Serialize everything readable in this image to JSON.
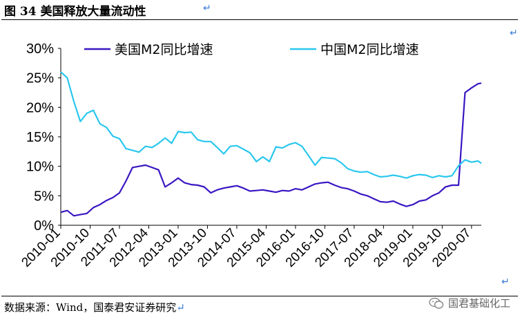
{
  "header": {
    "title": "图 34 美国释放大量流动性",
    "return_mark": "↵"
  },
  "footer": {
    "source": "数据来源：Wind，国泰君安证券研究",
    "watermark": "国君基础化工"
  },
  "colors": {
    "us_series": "#3a16c2",
    "china_series": "#29c7ee",
    "accent_mark": "#3a7bd5"
  },
  "chart_data": {
    "type": "line",
    "y_tick_labels": [
      "0%",
      "5%",
      "10%",
      "15%",
      "20%",
      "25%",
      "30%"
    ],
    "ylim": [
      0,
      30
    ],
    "x_tick_labels": [
      "2010-01",
      "2010-10",
      "2011-07",
      "2012-04",
      "2013-01",
      "2013-10",
      "2014-07",
      "2015-04",
      "2016-01",
      "2016-10",
      "2017-07",
      "2018-04",
      "2019-01",
      "2019-10",
      "2020-07"
    ],
    "legend": "top",
    "grid": false,
    "series": [
      {
        "name": "美国M2同比增速",
        "color": "#3a16c2",
        "points": [
          [
            "2010-01",
            2.2
          ],
          [
            "2010-03",
            2.5
          ],
          [
            "2010-05",
            1.6
          ],
          [
            "2010-07",
            1.8
          ],
          [
            "2010-09",
            2.0
          ],
          [
            "2010-11",
            3.0
          ],
          [
            "2011-01",
            3.5
          ],
          [
            "2011-03",
            4.2
          ],
          [
            "2011-05",
            4.7
          ],
          [
            "2011-07",
            5.5
          ],
          [
            "2011-09",
            7.5
          ],
          [
            "2011-11",
            9.8
          ],
          [
            "2012-01",
            10.0
          ],
          [
            "2012-03",
            10.2
          ],
          [
            "2012-05",
            9.8
          ],
          [
            "2012-07",
            9.4
          ],
          [
            "2012-09",
            6.5
          ],
          [
            "2012-11",
            7.2
          ],
          [
            "2013-01",
            8.0
          ],
          [
            "2013-03",
            7.2
          ],
          [
            "2013-05",
            6.9
          ],
          [
            "2013-07",
            6.8
          ],
          [
            "2013-09",
            6.5
          ],
          [
            "2013-11",
            5.5
          ],
          [
            "2014-01",
            6.0
          ],
          [
            "2014-03",
            6.3
          ],
          [
            "2014-05",
            6.5
          ],
          [
            "2014-07",
            6.7
          ],
          [
            "2014-09",
            6.3
          ],
          [
            "2014-11",
            5.8
          ],
          [
            "2015-01",
            5.9
          ],
          [
            "2015-03",
            6.0
          ],
          [
            "2015-05",
            5.8
          ],
          [
            "2015-07",
            5.6
          ],
          [
            "2015-09",
            5.9
          ],
          [
            "2015-11",
            5.8
          ],
          [
            "2016-01",
            6.2
          ],
          [
            "2016-03",
            6.0
          ],
          [
            "2016-05",
            6.5
          ],
          [
            "2016-07",
            7.0
          ],
          [
            "2016-09",
            7.2
          ],
          [
            "2016-11",
            7.3
          ],
          [
            "2017-01",
            6.8
          ],
          [
            "2017-03",
            6.4
          ],
          [
            "2017-05",
            6.2
          ],
          [
            "2017-07",
            5.8
          ],
          [
            "2017-09",
            5.3
          ],
          [
            "2017-11",
            5.0
          ],
          [
            "2018-01",
            4.5
          ],
          [
            "2018-03",
            4.0
          ],
          [
            "2018-05",
            3.9
          ],
          [
            "2018-07",
            4.1
          ],
          [
            "2018-09",
            3.6
          ],
          [
            "2018-11",
            3.2
          ],
          [
            "2019-01",
            3.5
          ],
          [
            "2019-03",
            4.1
          ],
          [
            "2019-05",
            4.3
          ],
          [
            "2019-07",
            5.0
          ],
          [
            "2019-09",
            5.5
          ],
          [
            "2019-11",
            6.5
          ],
          [
            "2020-01",
            6.8
          ],
          [
            "2020-03",
            6.8
          ],
          [
            "2020-05",
            22.5
          ],
          [
            "2020-07",
            23.3
          ],
          [
            "2020-09",
            24.0
          ],
          [
            "2020-10",
            24.1
          ]
        ]
      },
      {
        "name": "中国M2同比增速",
        "color": "#29c7ee",
        "points": [
          [
            "2010-01",
            26.0
          ],
          [
            "2010-03",
            25.0
          ],
          [
            "2010-05",
            21.0
          ],
          [
            "2010-07",
            17.6
          ],
          [
            "2010-09",
            19.0
          ],
          [
            "2010-11",
            19.5
          ],
          [
            "2011-01",
            17.2
          ],
          [
            "2011-03",
            16.6
          ],
          [
            "2011-05",
            15.1
          ],
          [
            "2011-07",
            14.7
          ],
          [
            "2011-09",
            13.0
          ],
          [
            "2011-11",
            12.7
          ],
          [
            "2012-01",
            12.4
          ],
          [
            "2012-03",
            13.4
          ],
          [
            "2012-05",
            13.2
          ],
          [
            "2012-07",
            13.9
          ],
          [
            "2012-09",
            14.8
          ],
          [
            "2012-11",
            13.9
          ],
          [
            "2013-01",
            15.9
          ],
          [
            "2013-03",
            15.7
          ],
          [
            "2013-05",
            15.8
          ],
          [
            "2013-07",
            14.5
          ],
          [
            "2013-09",
            14.2
          ],
          [
            "2013-11",
            14.2
          ],
          [
            "2014-01",
            13.2
          ],
          [
            "2014-03",
            12.1
          ],
          [
            "2014-05",
            13.4
          ],
          [
            "2014-07",
            13.5
          ],
          [
            "2014-09",
            12.9
          ],
          [
            "2014-11",
            12.3
          ],
          [
            "2015-01",
            10.8
          ],
          [
            "2015-03",
            11.6
          ],
          [
            "2015-05",
            10.8
          ],
          [
            "2015-07",
            13.3
          ],
          [
            "2015-09",
            13.1
          ],
          [
            "2015-11",
            13.7
          ],
          [
            "2016-01",
            14.0
          ],
          [
            "2016-03",
            13.4
          ],
          [
            "2016-05",
            11.8
          ],
          [
            "2016-07",
            10.2
          ],
          [
            "2016-09",
            11.5
          ],
          [
            "2016-11",
            11.4
          ],
          [
            "2017-01",
            11.3
          ],
          [
            "2017-03",
            10.6
          ],
          [
            "2017-05",
            9.6
          ],
          [
            "2017-07",
            9.2
          ],
          [
            "2017-09",
            9.0
          ],
          [
            "2017-11",
            9.1
          ],
          [
            "2018-01",
            8.6
          ],
          [
            "2018-03",
            8.2
          ],
          [
            "2018-05",
            8.3
          ],
          [
            "2018-07",
            8.5
          ],
          [
            "2018-09",
            8.3
          ],
          [
            "2018-11",
            8.0
          ],
          [
            "2019-01",
            8.4
          ],
          [
            "2019-03",
            8.6
          ],
          [
            "2019-05",
            8.5
          ],
          [
            "2019-07",
            8.1
          ],
          [
            "2019-09",
            8.4
          ],
          [
            "2019-11",
            8.2
          ],
          [
            "2020-01",
            8.4
          ],
          [
            "2020-03",
            10.1
          ],
          [
            "2020-05",
            11.1
          ],
          [
            "2020-07",
            10.7
          ],
          [
            "2020-09",
            10.9
          ],
          [
            "2020-10",
            10.5
          ]
        ]
      }
    ]
  }
}
